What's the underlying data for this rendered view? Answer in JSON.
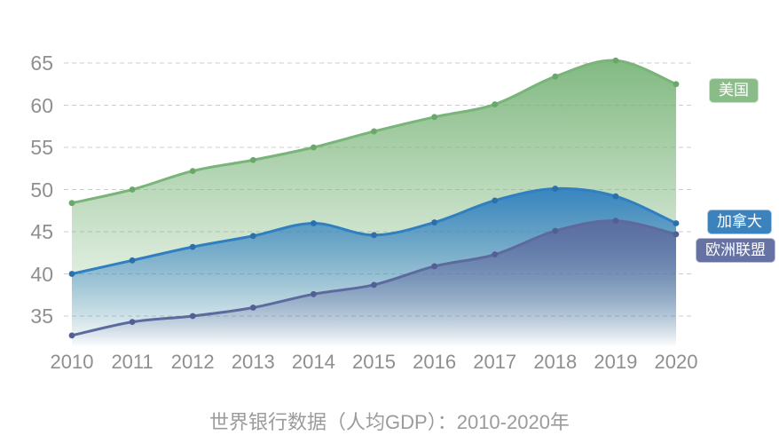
{
  "chart_data": {
    "type": "area",
    "title": "世界银行数据（人均GDP）：2010-2020年",
    "x": [
      2010,
      2011,
      2012,
      2013,
      2014,
      2015,
      2016,
      2017,
      2018,
      2019,
      2020
    ],
    "yticks": [
      35,
      40,
      45,
      50,
      55,
      60,
      65
    ],
    "ylim": [
      32,
      67.5
    ],
    "grid": "horizontal-dashed",
    "legend_position": "right",
    "series": [
      {
        "name": "美国",
        "values": [
          48.4,
          50.0,
          52.2,
          53.5,
          55.0,
          56.9,
          58.6,
          60.1,
          63.4,
          65.3,
          62.5
        ],
        "line_color": "#79b479",
        "dot_color": "#69a869",
        "badge_color": "#8abc8a"
      },
      {
        "name": "加拿大",
        "values": [
          40.0,
          41.6,
          43.2,
          44.5,
          46.0,
          44.6,
          46.1,
          48.7,
          50.1,
          49.2,
          46.0
        ],
        "line_color": "#2f7fc1",
        "dot_color": "#2b6fab",
        "badge_color": "#3c82bd"
      },
      {
        "name": "欧洲联盟",
        "values": [
          32.7,
          34.3,
          35.0,
          36.0,
          37.6,
          38.7,
          40.9,
          42.3,
          45.1,
          46.3,
          44.7
        ],
        "line_color": "#5d6a9e",
        "dot_color": "#535f94",
        "badge_color": "#6672a4"
      }
    ],
    "colors": {
      "grid_line": "#cccccc",
      "axis_text": "#8f8f8f",
      "caption_text": "#9b9b9b",
      "background": "#ffffff"
    }
  }
}
